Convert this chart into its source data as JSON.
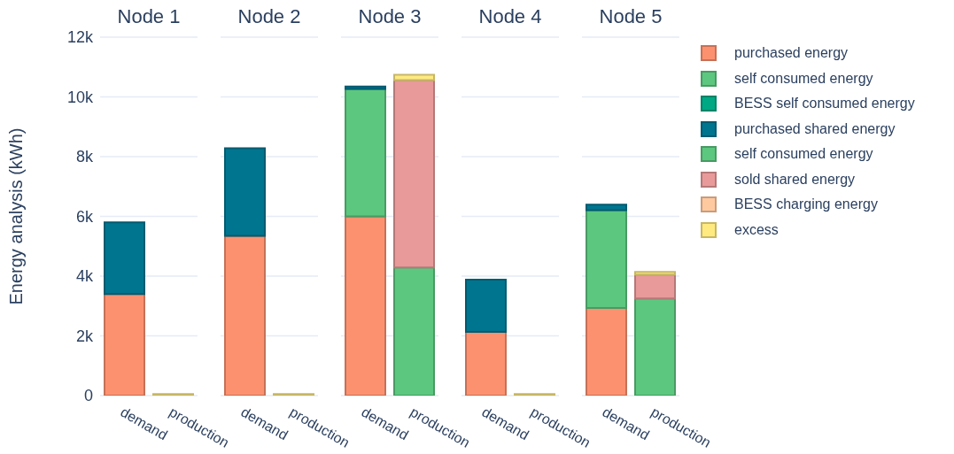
{
  "chart_data": [
    {
      "type": "bar",
      "title": "Node 1",
      "ylabel": "Energy analysis (kWh)",
      "categories": [
        "demand",
        "production"
      ],
      "stacked": true,
      "grid": "y",
      "ylim": [
        0,
        12000
      ],
      "yticks": [
        0,
        {
          "value": 2000,
          "label": "2k"
        },
        {
          "value": 4000,
          "label": "4k"
        },
        {
          "value": 6000,
          "label": "6k"
        },
        {
          "value": 8000,
          "label": "8k"
        },
        {
          "value": 10000,
          "label": "10k"
        },
        {
          "value": 12000,
          "label": "12k"
        }
      ],
      "series": [
        {
          "color": "#fc9170",
          "values": [
            3400,
            null
          ]
        },
        {
          "color": "#5cc77f",
          "values": [
            null,
            null
          ]
        },
        {
          "color": "#00a884",
          "values": [
            null,
            null
          ]
        },
        {
          "color": "#00758f",
          "values": [
            2400,
            null
          ]
        },
        {
          "color": "#5cc77f",
          "values": [
            null,
            null
          ]
        },
        {
          "color": "#e89a9a",
          "values": [
            null,
            null
          ]
        },
        {
          "color": "#ffc9a0",
          "values": [
            null,
            null
          ]
        },
        {
          "color": "#ffea80",
          "values": [
            null,
            50
          ]
        }
      ]
    },
    {
      "type": "bar",
      "title": "Node 2",
      "categories": [
        "demand",
        "production"
      ],
      "stacked": true,
      "grid": "y",
      "tick_labels": "x",
      "ylim": [
        0,
        12000
      ],
      "yticks": [
        0,
        2000,
        4000,
        6000,
        8000,
        10000,
        12000
      ],
      "series": [
        {
          "color": "#fc9170",
          "values": [
            5350,
            null
          ]
        },
        {
          "color": "#5cc77f",
          "values": [
            null,
            null
          ]
        },
        {
          "color": "#00a884",
          "values": [
            null,
            null
          ]
        },
        {
          "color": "#00758f",
          "values": [
            2930,
            null
          ]
        },
        {
          "color": "#5cc77f",
          "values": [
            null,
            null
          ]
        },
        {
          "color": "#e89a9a",
          "values": [
            null,
            null
          ]
        },
        {
          "color": "#ffc9a0",
          "values": [
            null,
            null
          ]
        },
        {
          "color": "#ffea80",
          "values": [
            null,
            50
          ]
        }
      ]
    },
    {
      "type": "bar",
      "title": "Node 3",
      "categories": [
        "demand",
        "production"
      ],
      "stacked": true,
      "grid": "y",
      "tick_labels": "x",
      "ylim": [
        0,
        12000
      ],
      "yticks": [
        0,
        2000,
        4000,
        6000,
        8000,
        10000,
        12000
      ],
      "series": [
        {
          "color": "#fc9170",
          "values": [
            6000,
            null
          ]
        },
        {
          "color": "#5cc77f",
          "values": [
            4270,
            null
          ]
        },
        {
          "color": "#00a884",
          "values": [
            null,
            null
          ]
        },
        {
          "color": "#00758f",
          "values": [
            80,
            null
          ]
        },
        {
          "color": "#5cc77f",
          "values": [
            null,
            4290
          ]
        },
        {
          "color": "#e89a9a",
          "values": [
            null,
            6270
          ]
        },
        {
          "color": "#ffc9a0",
          "values": [
            null,
            null
          ]
        },
        {
          "color": "#ffea80",
          "values": [
            null,
            180
          ]
        }
      ]
    },
    {
      "type": "bar",
      "title": "Node 4",
      "categories": [
        "demand",
        "production"
      ],
      "stacked": true,
      "grid": "y",
      "tick_labels": "x",
      "ylim": [
        0,
        12000
      ],
      "yticks": [
        0,
        2000,
        4000,
        6000,
        8000,
        10000,
        12000
      ],
      "series": [
        {
          "color": "#fc9170",
          "values": [
            2130,
            null
          ]
        },
        {
          "color": "#5cc77f",
          "values": [
            null,
            null
          ]
        },
        {
          "color": "#00a884",
          "values": [
            null,
            null
          ]
        },
        {
          "color": "#00758f",
          "values": [
            1750,
            null
          ]
        },
        {
          "color": "#5cc77f",
          "values": [
            null,
            null
          ]
        },
        {
          "color": "#e89a9a",
          "values": [
            null,
            null
          ]
        },
        {
          "color": "#ffc9a0",
          "values": [
            null,
            null
          ]
        },
        {
          "color": "#ffea80",
          "values": [
            null,
            50
          ]
        }
      ]
    },
    {
      "type": "bar",
      "title": "Node 5",
      "categories": [
        "demand",
        "production"
      ],
      "stacked": true,
      "grid": "y",
      "tick_labels": "x",
      "legend": "right",
      "ylim": [
        0,
        12000
      ],
      "yticks": [
        0,
        2000,
        4000,
        6000,
        8000,
        10000,
        12000
      ],
      "series": [
        {
          "name": "purchased energy",
          "color": "#fc9170",
          "values": [
            2930,
            null
          ]
        },
        {
          "name": "self consumed energy",
          "color": "#5cc77f",
          "values": [
            3280,
            null
          ]
        },
        {
          "name": "BESS self consumed energy",
          "color": "#00a884",
          "values": [
            null,
            null
          ]
        },
        {
          "name": "purchased shared energy",
          "color": "#00758f",
          "values": [
            180,
            null
          ]
        },
        {
          "name": "self consumed energy",
          "color": "#5cc77f",
          "values": [
            null,
            3250
          ]
        },
        {
          "name": "sold shared energy",
          "color": "#e89a9a",
          "values": [
            null,
            800
          ]
        },
        {
          "name": "BESS charging energy",
          "color": "#ffc9a0",
          "values": [
            null,
            null
          ]
        },
        {
          "name": "excess",
          "color": "#ffea80",
          "values": [
            null,
            90
          ]
        }
      ]
    }
  ]
}
